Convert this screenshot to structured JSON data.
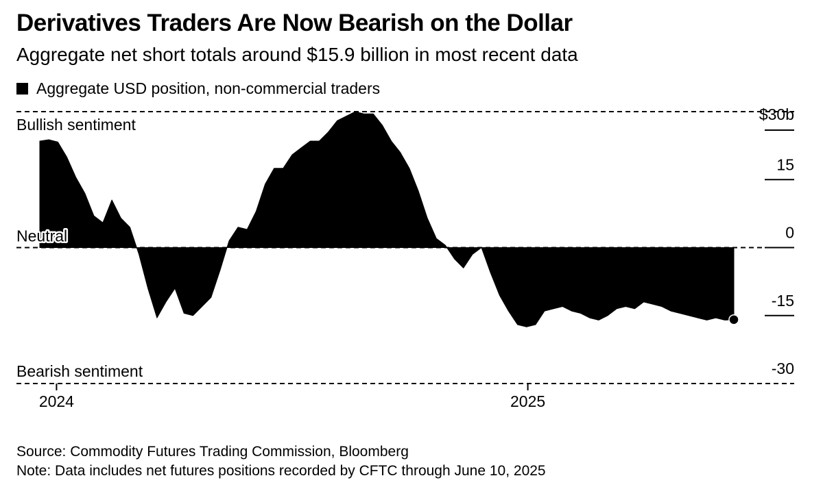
{
  "header": {
    "title": "Derivatives Traders Are Now Bearish on the Dollar",
    "subtitle": "Aggregate net short totals around $15.9 billion in most recent data"
  },
  "legend": {
    "label": "Aggregate USD position, non-commercial traders",
    "color": "#000000"
  },
  "annotations": {
    "top": "Bullish sentiment",
    "middle": "Neutral",
    "bottom": "Bearish sentiment"
  },
  "footer": {
    "source": "Source: Commodity Futures Trading Commission, Bloomberg",
    "note": "Note: Data includes net futures positions recorded by CFTC through June 10, 2025"
  },
  "chart_data": {
    "type": "area",
    "series": [
      {
        "name": "Aggregate USD position, non-commercial traders",
        "color": "#000000",
        "x": [
          "2023-12-19",
          "2023-12-26",
          "2024-01-02",
          "2024-01-09",
          "2024-01-16",
          "2024-01-23",
          "2024-01-30",
          "2024-02-06",
          "2024-02-13",
          "2024-02-20",
          "2024-02-27",
          "2024-03-05",
          "2024-03-12",
          "2024-03-19",
          "2024-03-26",
          "2024-04-02",
          "2024-04-09",
          "2024-04-16",
          "2024-04-23",
          "2024-04-30",
          "2024-05-07",
          "2024-05-14",
          "2024-05-21",
          "2024-05-28",
          "2024-06-04",
          "2024-06-11",
          "2024-06-18",
          "2024-06-25",
          "2024-07-02",
          "2024-07-09",
          "2024-07-16",
          "2024-07-23",
          "2024-07-30",
          "2024-08-06",
          "2024-08-13",
          "2024-08-20",
          "2024-08-27",
          "2024-09-03",
          "2024-09-10",
          "2024-09-17",
          "2024-09-24",
          "2024-10-01",
          "2024-10-08",
          "2024-10-15",
          "2024-10-22",
          "2024-10-29",
          "2024-11-05",
          "2024-11-12",
          "2024-11-19",
          "2024-11-26",
          "2024-12-03",
          "2024-12-10",
          "2024-12-17",
          "2024-12-24",
          "2024-12-31",
          "2025-01-07",
          "2025-01-14",
          "2025-01-21",
          "2025-01-28",
          "2025-02-04",
          "2025-02-11",
          "2025-02-18",
          "2025-02-25",
          "2025-03-04",
          "2025-03-11",
          "2025-03-18",
          "2025-03-25",
          "2025-04-01",
          "2025-04-08",
          "2025-04-15",
          "2025-04-22",
          "2025-04-29",
          "2025-05-06",
          "2025-05-13",
          "2025-05-20",
          "2025-05-27",
          "2025-06-03",
          "2025-06-10"
        ],
        "values": [
          23.5,
          23.8,
          23.3,
          20.0,
          15.5,
          12.0,
          7.0,
          5.5,
          10.5,
          6.5,
          4.5,
          -1.5,
          -9.0,
          -15.5,
          -12.0,
          -9.0,
          -14.5,
          -15.0,
          -13.0,
          -11.0,
          -5.0,
          1.5,
          4.5,
          4.0,
          8.0,
          14.0,
          17.5,
          17.5,
          20.5,
          22.0,
          23.5,
          23.5,
          25.5,
          28.0,
          29.0,
          30.0,
          29.5,
          29.5,
          27.0,
          23.5,
          21.0,
          17.5,
          12.5,
          6.5,
          2.0,
          0.5,
          -2.5,
          -4.5,
          -1.5,
          0.0,
          -5.5,
          -10.5,
          -14.0,
          -17.0,
          -17.5,
          -17.0,
          -14.0,
          -13.5,
          -13.0,
          -14.0,
          -14.5,
          -15.5,
          -16.0,
          -15.0,
          -13.5,
          -13.0,
          -13.5,
          -12.0,
          -12.5,
          -13.0,
          -14.0,
          -14.5,
          -15.0,
          -15.5,
          -16.0,
          -15.5,
          -16.0,
          -15.9
        ]
      }
    ],
    "yticks": [
      {
        "value": 30,
        "label": "$30b"
      },
      {
        "value": 15,
        "label": "15"
      },
      {
        "value": 0,
        "label": "0"
      },
      {
        "value": -15,
        "label": "-15"
      },
      {
        "value": -30,
        "label": "-30"
      }
    ],
    "xticks": [
      {
        "value": "2024-01-01",
        "label": "2024"
      },
      {
        "value": "2025-01-01",
        "label": "2025"
      }
    ],
    "xlim": [
      "2023-12-19",
      "2025-06-10"
    ],
    "ylim": [
      -30,
      30
    ],
    "reference_lines": [
      30,
      0,
      -30
    ],
    "last_point_marker": true
  }
}
